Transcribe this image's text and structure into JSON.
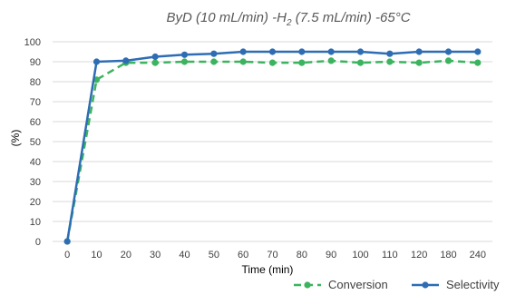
{
  "chart_data": {
    "type": "line",
    "title": {
      "main": "ByD (10 mL/min) -H",
      "sub": "2",
      "rest": " (7.5 mL/min) -65°C"
    },
    "xlabel": "Time (min)",
    "ylabel": "(%)",
    "categories": [
      "0",
      "10",
      "20",
      "30",
      "40",
      "50",
      "60",
      "70",
      "80",
      "90",
      "100",
      "110",
      "120",
      "180",
      "240"
    ],
    "ylim": [
      0,
      100
    ],
    "yticks": [
      0,
      10,
      20,
      30,
      40,
      50,
      60,
      70,
      80,
      90,
      100
    ],
    "grid": true,
    "legend_position": "bottom-right",
    "series": [
      {
        "name": "Conversion",
        "color": "#3cb35f",
        "dash": "dashed",
        "values": [
          0,
          81,
          89.5,
          89.5,
          90,
          90,
          90,
          89.5,
          89.5,
          90.5,
          89.5,
          90,
          89.5,
          90.5,
          89.5
        ]
      },
      {
        "name": "Selectivity",
        "color": "#2e6db4",
        "dash": "solid",
        "values": [
          0,
          90,
          90.5,
          92.5,
          93.5,
          94,
          95,
          95,
          95,
          95,
          95,
          94,
          95,
          95,
          95
        ]
      }
    ]
  }
}
